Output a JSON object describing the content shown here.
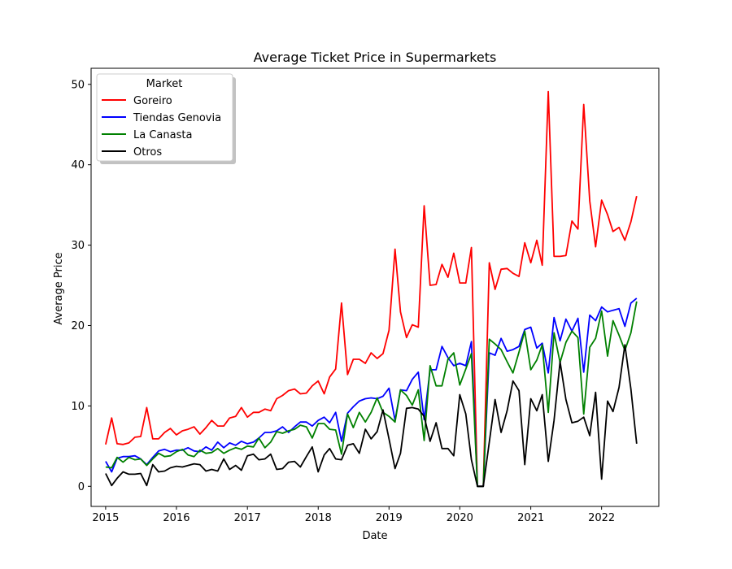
{
  "chart_data": {
    "type": "line",
    "title": "Average Ticket Price in Supermarkets",
    "xlabel": "Date",
    "ylabel": "Average Price",
    "xlim": [
      "2014-10-18",
      "2022-10-23"
    ],
    "ylim": [
      -2.5,
      52
    ],
    "x_ticks": [
      "2015",
      "2016",
      "2017",
      "2018",
      "2019",
      "2020",
      "2021",
      "2022"
    ],
    "y_ticks": [
      0,
      10,
      20,
      30,
      40,
      50
    ],
    "grid": false,
    "legend": {
      "title": "Market",
      "placement": "top-left",
      "entries": [
        "Goreiro",
        "Tiendas Genovia",
        "La Canasta",
        "Otros"
      ]
    },
    "x": [
      "2015-01",
      "2015-02",
      "2015-03",
      "2015-04",
      "2015-05",
      "2015-06",
      "2015-07",
      "2015-08",
      "2015-09",
      "2015-10",
      "2015-11",
      "2015-12",
      "2016-01",
      "2016-02",
      "2016-03",
      "2016-04",
      "2016-05",
      "2016-06",
      "2016-07",
      "2016-08",
      "2016-09",
      "2016-10",
      "2016-11",
      "2016-12",
      "2017-01",
      "2017-02",
      "2017-03",
      "2017-04",
      "2017-05",
      "2017-06",
      "2017-07",
      "2017-08",
      "2017-09",
      "2017-10",
      "2017-11",
      "2017-12",
      "2018-01",
      "2018-02",
      "2018-03",
      "2018-04",
      "2018-05",
      "2018-06",
      "2018-07",
      "2018-08",
      "2018-09",
      "2018-10",
      "2018-11",
      "2018-12",
      "2019-01",
      "2019-02",
      "2019-03",
      "2019-04",
      "2019-05",
      "2019-06",
      "2019-07",
      "2019-08",
      "2019-09",
      "2019-10",
      "2019-11",
      "2019-12",
      "2020-01",
      "2020-02",
      "2020-03",
      "2020-04",
      "2020-05",
      "2020-06",
      "2020-07",
      "2020-08",
      "2020-09",
      "2020-10",
      "2020-11",
      "2020-12",
      "2021-01",
      "2021-02",
      "2021-03",
      "2021-04",
      "2021-05",
      "2021-06",
      "2021-07",
      "2021-08",
      "2021-09",
      "2021-10",
      "2021-11",
      "2021-12",
      "2022-01",
      "2022-02",
      "2022-03",
      "2022-04",
      "2022-05",
      "2022-06",
      "2022-07"
    ],
    "series": [
      {
        "name": "Goreiro",
        "color": "#ff0000",
        "values": [
          5.2,
          8.5,
          5.3,
          5.2,
          5.4,
          6.1,
          6.2,
          9.8,
          5.9,
          5.9,
          6.7,
          7.2,
          6.4,
          6.9,
          7.1,
          7.4,
          6.5,
          7.3,
          8.2,
          7.5,
          7.5,
          8.5,
          8.7,
          9.8,
          8.6,
          9.2,
          9.2,
          9.6,
          9.4,
          10.9,
          11.3,
          11.9,
          12.1,
          11.5,
          11.6,
          12.5,
          13.1,
          11.5,
          13.6,
          14.6,
          22.8,
          13.9,
          15.8,
          15.8,
          15.3,
          16.6,
          15.9,
          16.5,
          19.4,
          29.5,
          21.7,
          18.5,
          20.1,
          19.8,
          34.9,
          25.0,
          25.1,
          27.6,
          26.0,
          29.0,
          25.3,
          25.3,
          29.7,
          0.0,
          0.0,
          27.8,
          24.5,
          27.0,
          27.1,
          26.5,
          26.1,
          30.3,
          27.8,
          30.6,
          27.5,
          49.1,
          28.6,
          28.6,
          28.7,
          33.0,
          32.0,
          47.5,
          35.5,
          29.8,
          35.6,
          33.8,
          31.7,
          32.2,
          30.6,
          32.9,
          36.1
        ]
      },
      {
        "name": "Tiendas Genovia",
        "color": "#0000ff",
        "values": [
          3.1,
          1.8,
          3.5,
          3.7,
          3.7,
          3.8,
          3.4,
          2.7,
          3.6,
          4.4,
          4.6,
          4.3,
          4.5,
          4.5,
          4.8,
          4.4,
          4.3,
          4.9,
          4.5,
          5.5,
          4.8,
          5.4,
          5.1,
          5.6,
          5.3,
          5.5,
          6.0,
          6.7,
          6.7,
          6.9,
          7.4,
          6.7,
          7.4,
          8.0,
          8.0,
          7.5,
          8.2,
          8.6,
          7.9,
          9.2,
          5.6,
          9.1,
          9.9,
          10.6,
          10.9,
          11.0,
          10.9,
          11.2,
          12.2,
          8.2,
          12.0,
          11.9,
          13.3,
          14.2,
          8.3,
          14.5,
          14.5,
          17.4,
          16.0,
          15.0,
          15.3,
          15.0,
          18.0,
          0.0,
          0.0,
          16.6,
          16.3,
          18.4,
          16.8,
          17.0,
          17.4,
          19.5,
          19.8,
          17.2,
          17.8,
          14.1,
          21.0,
          18.1,
          20.8,
          19.3,
          20.9,
          14.2,
          21.3,
          20.6,
          22.3,
          21.7,
          21.9,
          22.1,
          19.9,
          22.8,
          23.4
        ]
      },
      {
        "name": "La Canasta",
        "color": "#008000",
        "values": [
          2.4,
          2.3,
          3.6,
          3.0,
          3.6,
          3.3,
          3.4,
          2.6,
          3.4,
          4.1,
          3.7,
          3.8,
          4.3,
          4.6,
          3.9,
          3.7,
          4.5,
          4.1,
          4.2,
          4.7,
          4.1,
          4.5,
          4.8,
          4.6,
          5.0,
          4.9,
          6.0,
          4.8,
          5.5,
          6.8,
          6.6,
          6.9,
          7.1,
          7.6,
          7.4,
          6.0,
          7.8,
          7.8,
          7.1,
          7.0,
          4.0,
          9.0,
          7.3,
          9.2,
          8.0,
          9.2,
          11.0,
          9.2,
          8.7,
          8.0,
          12.0,
          11.3,
          10.1,
          12.0,
          5.7,
          15.0,
          12.5,
          12.5,
          15.8,
          16.6,
          12.6,
          14.6,
          16.5,
          0.0,
          0.0,
          18.3,
          17.7,
          17.0,
          15.5,
          14.1,
          16.7,
          19.3,
          14.5,
          15.7,
          17.6,
          9.2,
          19.1,
          15.4,
          17.9,
          19.3,
          18.5,
          9.0,
          17.3,
          18.4,
          21.8,
          16.2,
          20.6,
          18.8,
          16.9,
          19.1,
          23.0
        ]
      },
      {
        "name": "Otros",
        "color": "#000000",
        "values": [
          1.6,
          0.1,
          1.0,
          1.8,
          1.5,
          1.5,
          1.6,
          0.1,
          2.7,
          1.8,
          1.9,
          2.3,
          2.5,
          2.4,
          2.6,
          2.8,
          2.7,
          1.9,
          2.1,
          1.9,
          3.4,
          2.1,
          2.6,
          2.0,
          3.8,
          4.0,
          3.3,
          3.4,
          4.0,
          2.1,
          2.2,
          3.0,
          3.1,
          2.4,
          3.7,
          4.9,
          1.8,
          3.9,
          4.7,
          3.4,
          3.3,
          5.1,
          5.3,
          4.1,
          7.1,
          5.9,
          6.8,
          9.5,
          5.9,
          2.2,
          4.1,
          9.7,
          9.8,
          9.6,
          8.7,
          5.6,
          7.9,
          4.7,
          4.7,
          3.8,
          11.4,
          9.0,
          3.3,
          0.0,
          0.0,
          5.5,
          10.8,
          6.7,
          9.4,
          13.1,
          11.9,
          2.7,
          10.9,
          9.4,
          11.4,
          3.1,
          8.2,
          15.5,
          10.8,
          7.9,
          8.1,
          8.6,
          6.3,
          11.7,
          0.9,
          10.6,
          9.3,
          12.3,
          17.6,
          12.1,
          5.3
        ]
      }
    ]
  }
}
